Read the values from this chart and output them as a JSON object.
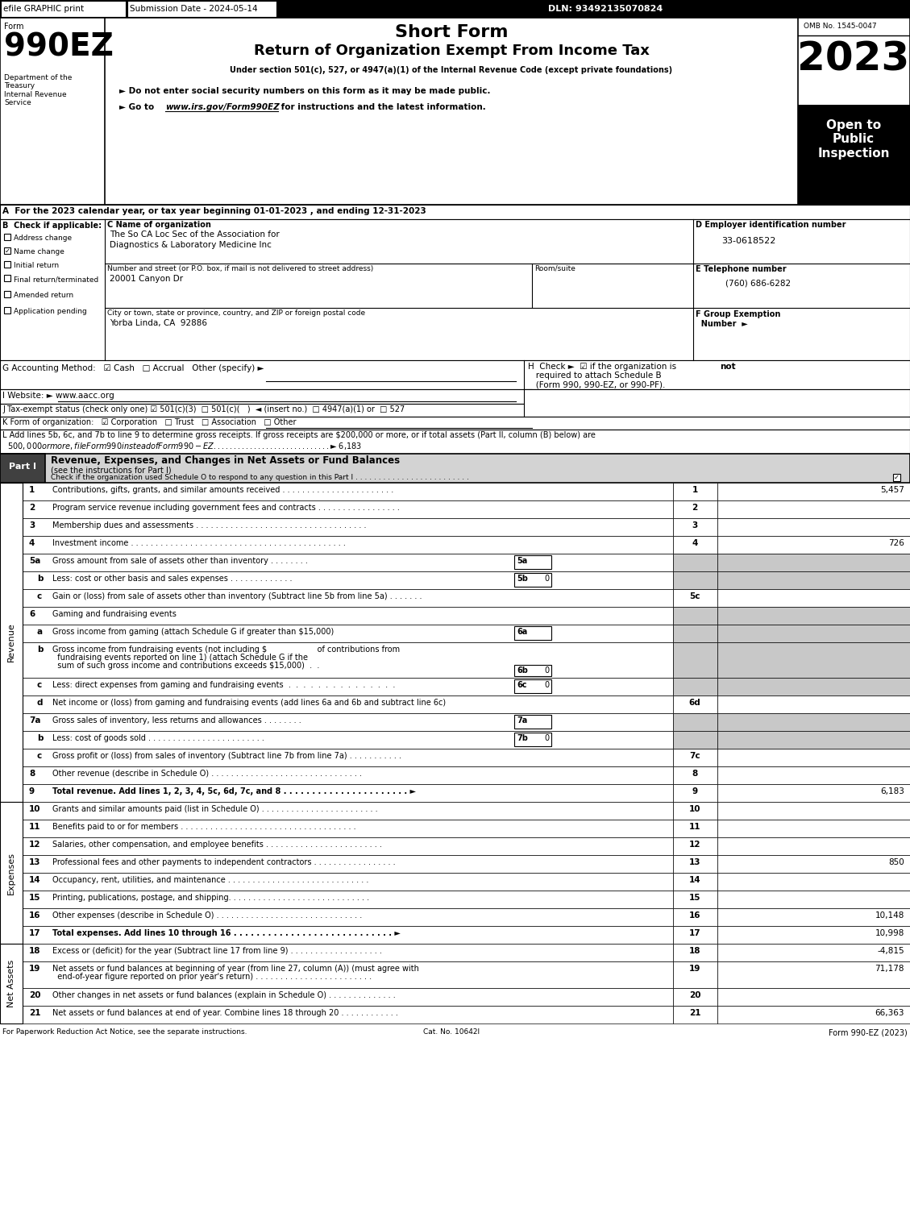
{
  "page_bg": "#ffffff",
  "header_bar_bg": "#000000",
  "header_bar_items": [
    "efile GRAPHIC print",
    "Submission Date - 2024-05-14",
    "DLN: 93492135070824"
  ],
  "form_number": "990EZ",
  "short_form_title": "Short Form",
  "main_title": "Return of Organization Exempt From Income Tax",
  "subtitle": "Under section 501(c), 527, or 4947(a)(1) of the Internal Revenue Code (except private foundations)",
  "bullet1": "► Do not enter social security numbers on this form as it may be made public.",
  "bullet2_prefix": "► Go to ",
  "bullet2_url": "www.irs.gov/Form990EZ",
  "bullet2_suffix": " for instructions and the latest information.",
  "year": "2023",
  "omb": "OMB No. 1545-0047",
  "open_to": "Open to\nPublic\nInspection",
  "dept_text": "Department of the\nTreasury\nInternal Revenue\nService",
  "form_label": "Form",
  "section_a": "A  For the 2023 calendar year, or tax year beginning 01-01-2023 , and ending 12-31-2023",
  "section_b_label": "B  Check if applicable:",
  "checkboxes_b": [
    {
      "label": "Address change",
      "checked": false
    },
    {
      "label": "Name change",
      "checked": true
    },
    {
      "label": "Initial return",
      "checked": false
    },
    {
      "label": "Final return/terminated",
      "checked": false
    },
    {
      "label": "Amended return",
      "checked": false
    },
    {
      "label": "Application pending",
      "checked": false
    }
  ],
  "org_name_line1": "The So CA Loc Sec of the Association for",
  "org_name_line2": "Diagnostics & Laboratory Medicine Inc",
  "address_value": "20001 Canyon Dr",
  "city_value": "Yorba Linda, CA  92886",
  "ein": "33-0618522",
  "phone": "(760) 686-6282",
  "footer_left": "For Paperwork Reduction Act Notice, see the separate instructions.",
  "footer_cat": "Cat. No. 10642I",
  "footer_right": "Form 990-EZ (2023)",
  "expense_lines": [
    {
      "num": "10",
      "text": "Grants and similar amounts paid (list in Schedule O) . . . . . . . . . . . . . . . . . . . . . . . .",
      "value": "",
      "bold": false
    },
    {
      "num": "11",
      "text": "Benefits paid to or for members . . . . . . . . . . . . . . . . . . . . . . . . . . . . . . . . . . . .",
      "value": "",
      "bold": false
    },
    {
      "num": "12",
      "text": "Salaries, other compensation, and employee benefits . . . . . . . . . . . . . . . . . . . . . . . .",
      "value": "",
      "bold": false
    },
    {
      "num": "13",
      "text": "Professional fees and other payments to independent contractors . . . . . . . . . . . . . . . . .",
      "value": "850",
      "bold": false
    },
    {
      "num": "14",
      "text": "Occupancy, rent, utilities, and maintenance . . . . . . . . . . . . . . . . . . . . . . . . . . . . .",
      "value": "",
      "bold": false
    },
    {
      "num": "15",
      "text": "Printing, publications, postage, and shipping. . . . . . . . . . . . . . . . . . . . . . . . . . . . .",
      "value": "",
      "bold": false
    },
    {
      "num": "16",
      "text": "Other expenses (describe in Schedule O) . . . . . . . . . . . . . . . . . . . . . . . . . . . . . .",
      "value": "10,148",
      "bold": false
    },
    {
      "num": "17",
      "text": "Total expenses. Add lines 10 through 16 . . . . . . . . . . . . . . . . . . . . . . . . . . . . ►",
      "value": "10,998",
      "bold": true
    }
  ]
}
